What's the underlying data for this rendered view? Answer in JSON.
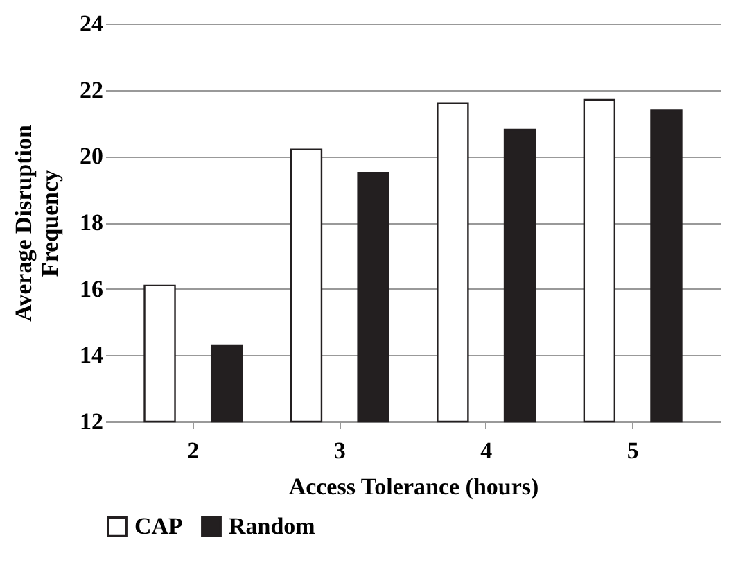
{
  "chart_data": {
    "type": "bar",
    "xlabel": "Access Tolerance (hours)",
    "ylabel": "Average Disruption Frequency",
    "categories": [
      "2",
      "3",
      "4",
      "5"
    ],
    "series": [
      {
        "name": "CAP",
        "color": "#ffffff",
        "values": [
          16.1,
          20.2,
          21.6,
          21.7
        ]
      },
      {
        "name": "Random",
        "color": "#231f20",
        "values": [
          14.3,
          19.5,
          20.8,
          21.4
        ]
      }
    ],
    "ylim": [
      12,
      24
    ],
    "yticks": [
      12,
      14,
      16,
      18,
      20,
      22,
      24
    ],
    "grid": "y",
    "legend": "bottom"
  }
}
